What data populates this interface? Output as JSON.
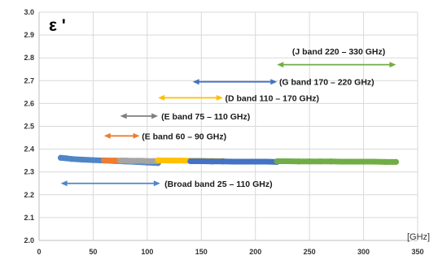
{
  "chart_data": {
    "type": "scatter",
    "title": "",
    "ylabel": "ε '",
    "xlabel": "",
    "x_unit": "[GHz]",
    "xlim": [
      0,
      350
    ],
    "ylim": [
      2.0,
      3.0
    ],
    "x_ticks": [
      0,
      50,
      100,
      150,
      200,
      250,
      300,
      350
    ],
    "y_ticks": [
      2.0,
      2.1,
      2.2,
      2.3,
      2.4,
      2.5,
      2.6,
      2.7,
      2.8,
      2.9,
      3.0
    ],
    "y_tick_labels": [
      "2.0",
      "2.1",
      "2.2",
      "2.3",
      "2.4",
      "2.5",
      "2.6",
      "2.7",
      "2.8",
      "2.9",
      "3.0"
    ],
    "grid": true,
    "legend": "none",
    "series": [
      {
        "label": "Broad band 25 – 110 GHz",
        "color": "#4f86c6",
        "x": [
          20,
          25,
          30,
          40,
          50,
          60,
          70,
          80,
          90,
          100,
          110
        ],
        "y": [
          2.362,
          2.36,
          2.357,
          2.354,
          2.352,
          2.35,
          2.348,
          2.346,
          2.344,
          2.341,
          2.339
        ]
      },
      {
        "label": "E band 60 – 90 GHz",
        "color": "#ed7d31",
        "x": [
          60,
          65,
          70,
          75,
          80,
          85,
          90
        ],
        "y": [
          2.351,
          2.35,
          2.35,
          2.349,
          2.349,
          2.348,
          2.348
        ]
      },
      {
        "label": "E band 75 – 110 GHz",
        "color": "#a5a5a5",
        "x": [
          75,
          80,
          85,
          90,
          95,
          100,
          105,
          110
        ],
        "y": [
          2.35,
          2.35,
          2.349,
          2.349,
          2.349,
          2.348,
          2.348,
          2.348
        ]
      },
      {
        "label": "D band 110 – 170 GHz",
        "color": "#ffc000",
        "x": [
          110,
          120,
          130,
          140,
          150,
          160,
          170
        ],
        "y": [
          2.351,
          2.35,
          2.35,
          2.349,
          2.349,
          2.348,
          2.348
        ]
      },
      {
        "label": "G band 170 – 220 GHz",
        "color": "#4472c4",
        "x": [
          140,
          150,
          160,
          170,
          180,
          190,
          200,
          210,
          220
        ],
        "y": [
          2.347,
          2.347,
          2.346,
          2.346,
          2.345,
          2.345,
          2.345,
          2.345,
          2.344
        ]
      },
      {
        "label": "J band 220 – 330 GHz",
        "color": "#70ad47",
        "x": [
          220,
          230,
          240,
          250,
          260,
          270,
          280,
          290,
          300,
          310,
          320,
          330
        ],
        "y": [
          2.347,
          2.347,
          2.346,
          2.346,
          2.346,
          2.346,
          2.345,
          2.345,
          2.345,
          2.345,
          2.344,
          2.344
        ]
      }
    ],
    "annotations": [
      {
        "text": "(J band 220 – 330 GHz)",
        "color": "#70ad47",
        "x1": 220,
        "x2": 330,
        "y": 2.77,
        "label_x": 234,
        "label_y": 2.83
      },
      {
        "text": "(G band 170 – 220 GHz)",
        "color": "#4472c4",
        "x1": 142,
        "x2": 220,
        "y": 2.695,
        "label_x": 222,
        "label_y": 2.695
      },
      {
        "text": "(D band 110 – 170 GHz)",
        "color": "#ffc000",
        "x1": 110,
        "x2": 170,
        "y": 2.625,
        "label_x": 172,
        "label_y": 2.625
      },
      {
        "text": "(E band 75 – 110 GHz)",
        "color": "#7f7f7f",
        "x1": 75,
        "x2": 110,
        "y": 2.545,
        "label_x": 113,
        "label_y": 2.545
      },
      {
        "text": "(E band 60 – 90 GHz)",
        "color": "#ed7d31",
        "x1": 60,
        "x2": 93,
        "y": 2.458,
        "label_x": 95,
        "label_y": 2.458
      },
      {
        "text": "(Broad band 25 – 110 GHz)",
        "color": "#4f86c6",
        "x1": 20,
        "x2": 112,
        "y": 2.25,
        "label_x": 116,
        "label_y": 2.25
      }
    ]
  }
}
